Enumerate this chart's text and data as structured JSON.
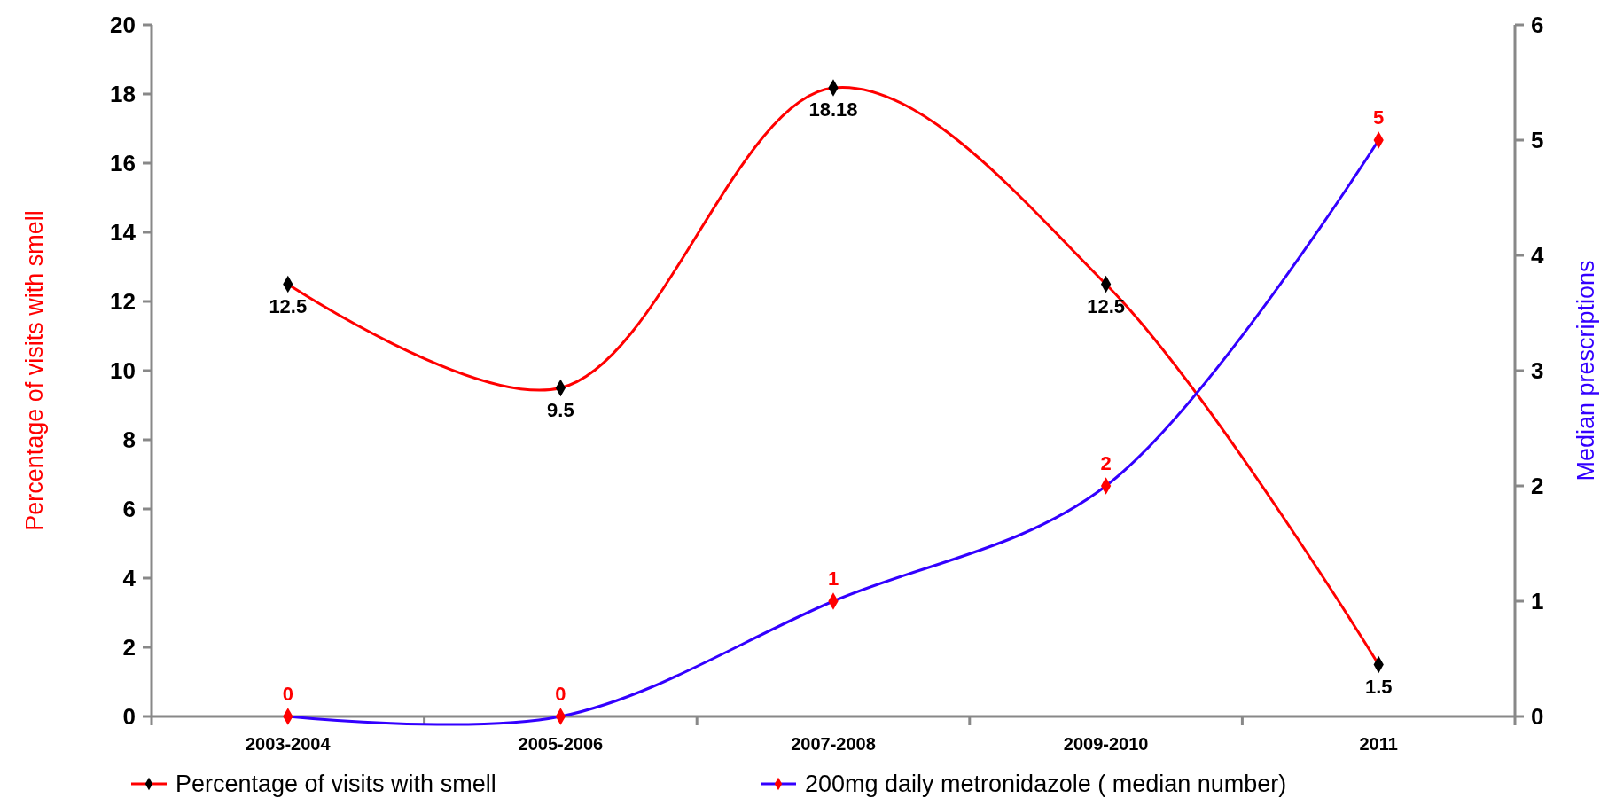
{
  "chart_data": {
    "type": "line",
    "categories": [
      "2003-2004",
      "2005-2006",
      "2007-2008",
      "2009-2010",
      "2011"
    ],
    "series": [
      {
        "name": "Percentage of visits with smell",
        "color": "#ff0000",
        "values": [
          12.5,
          9.5,
          18.18,
          12.5,
          1.5
        ]
      },
      {
        "name": "200mg daily metronidazole ( median number)",
        "color": "#3300ff",
        "values": [
          0,
          0,
          1,
          2,
          5
        ],
        "axis": "y2"
      }
    ],
    "ylabel": "Percentage of visits with smell",
    "y2label": "Median prescriptions",
    "ylim": [
      0,
      20
    ],
    "yticks": [
      0,
      2,
      4,
      6,
      8,
      10,
      12,
      14,
      16,
      18,
      20
    ],
    "y2lim": [
      0,
      6
    ],
    "y2ticks": [
      0,
      1,
      2,
      3,
      4,
      5,
      6
    ],
    "data_labels": true,
    "legend": "bottom",
    "marker": "diamond",
    "grid": false
  }
}
